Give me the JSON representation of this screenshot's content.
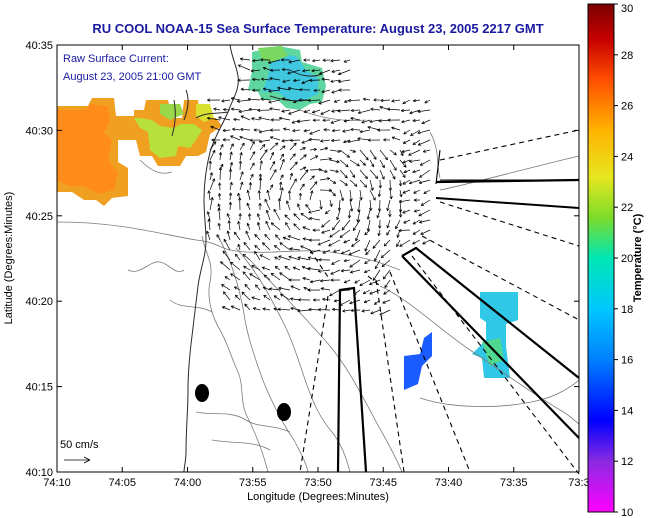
{
  "title": "RU COOL  NOAA-15  Sea Surface Temperature:  August 23, 2005 2217 GMT",
  "current_note": {
    "line1": "Raw Surface Current:",
    "line2": "August 23, 2005 21:00 GMT"
  },
  "scale_label": "50 cm/s",
  "xlabel": "Longitude (Degrees:Minutes)",
  "ylabel": "Latitude (Degrees:Minutes)",
  "xticks": [
    "74:10",
    "74:05",
    "74:00",
    "73:55",
    "73:50",
    "73:45",
    "73:40",
    "73:35",
    "73:3"
  ],
  "yticks": [
    "40:35",
    "40:30",
    "40:25",
    "40:20",
    "40:15",
    "40:10"
  ],
  "colorbar": {
    "label": "Temperature (°C)",
    "ticks": [
      "30",
      "28",
      "26",
      "24",
      "22",
      "20",
      "18",
      "16",
      "14",
      "12",
      "10"
    ],
    "colors": [
      "#ff00ff",
      "#8a2be2",
      "#0000ff",
      "#0080ff",
      "#00c8ff",
      "#00e6b4",
      "#7ddc2a",
      "#e6e61e",
      "#ffb400",
      "#ff5000",
      "#c80000",
      "#7a0000"
    ]
  }
}
